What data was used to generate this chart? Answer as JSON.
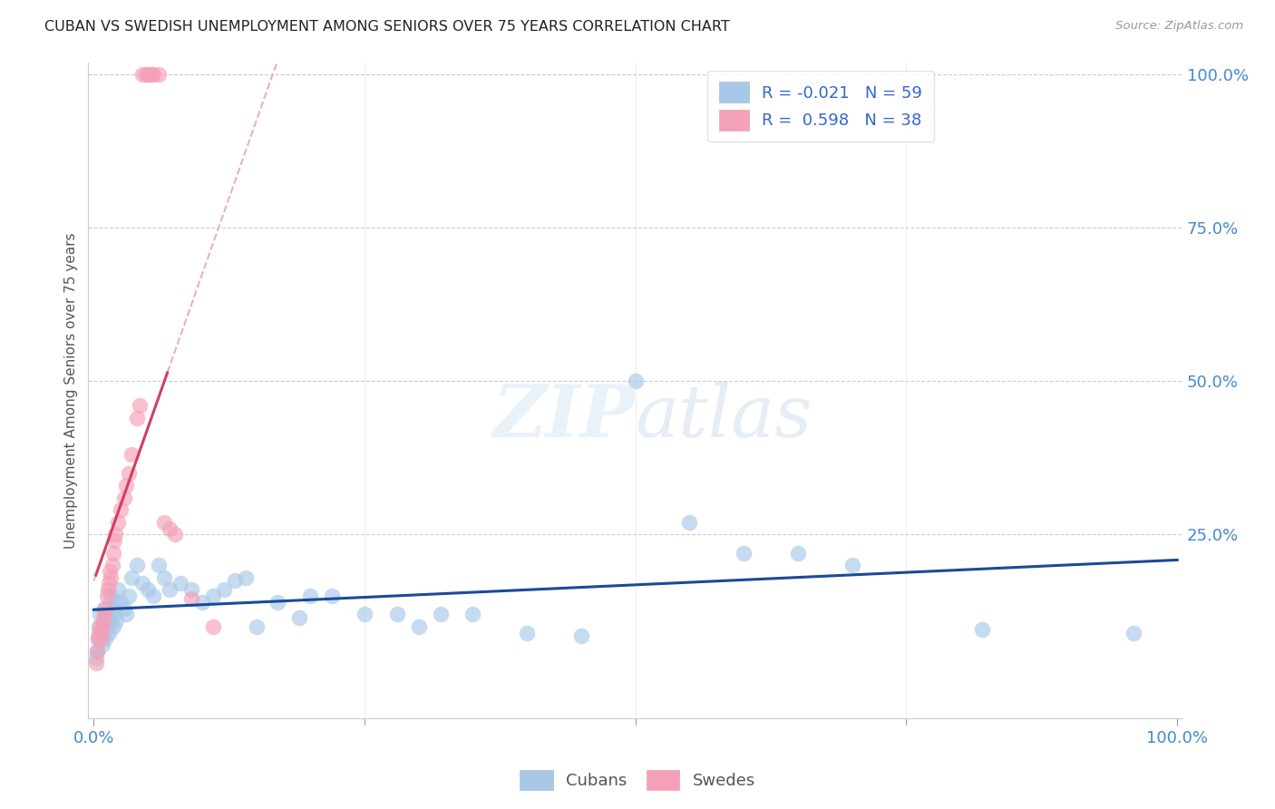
{
  "title": "CUBAN VS SWEDISH UNEMPLOYMENT AMONG SENIORS OVER 75 YEARS CORRELATION CHART",
  "source": "Source: ZipAtlas.com",
  "ylabel_label": "Unemployment Among Seniors over 75 years",
  "legend_cubans": "Cubans",
  "legend_swedes": "Swedes",
  "R_cubans": -0.021,
  "N_cubans": 59,
  "R_swedes": 0.598,
  "N_swedes": 38,
  "cubans_color": "#a8c8e8",
  "swedes_color": "#f4a0b8",
  "cubans_line_color": "#1a4a9a",
  "swedes_line_color": "#d04060",
  "trendline_dashed_color": "#e8b0b8",
  "cubans_x": [
    0.002,
    0.003,
    0.004,
    0.005,
    0.006,
    0.007,
    0.008,
    0.009,
    0.01,
    0.011,
    0.012,
    0.013,
    0.014,
    0.015,
    0.016,
    0.017,
    0.018,
    0.019,
    0.02,
    0.021,
    0.022,
    0.025,
    0.028,
    0.03,
    0.032,
    0.035,
    0.04,
    0.045,
    0.05,
    0.055,
    0.06,
    0.065,
    0.07,
    0.08,
    0.09,
    0.1,
    0.11,
    0.12,
    0.13,
    0.14,
    0.15,
    0.17,
    0.19,
    0.2,
    0.22,
    0.25,
    0.28,
    0.3,
    0.32,
    0.35,
    0.4,
    0.45,
    0.5,
    0.55,
    0.6,
    0.65,
    0.7,
    0.82,
    0.96
  ],
  "cubans_y": [
    0.05,
    0.06,
    0.08,
    0.1,
    0.12,
    0.09,
    0.07,
    0.11,
    0.13,
    0.08,
    0.1,
    0.12,
    0.09,
    0.11,
    0.15,
    0.13,
    0.1,
    0.12,
    0.14,
    0.11,
    0.16,
    0.14,
    0.13,
    0.12,
    0.15,
    0.18,
    0.2,
    0.17,
    0.16,
    0.15,
    0.2,
    0.18,
    0.16,
    0.17,
    0.16,
    0.14,
    0.15,
    0.16,
    0.175,
    0.18,
    0.1,
    0.14,
    0.115,
    0.15,
    0.15,
    0.12,
    0.12,
    0.1,
    0.12,
    0.12,
    0.09,
    0.085,
    0.5,
    0.27,
    0.22,
    0.22,
    0.2,
    0.095,
    0.09
  ],
  "swedes_x": [
    0.002,
    0.003,
    0.004,
    0.005,
    0.006,
    0.007,
    0.008,
    0.009,
    0.01,
    0.011,
    0.012,
    0.013,
    0.014,
    0.015,
    0.016,
    0.017,
    0.018,
    0.019,
    0.02,
    0.022,
    0.025,
    0.028,
    0.03,
    0.032,
    0.035,
    0.04,
    0.042,
    0.045,
    0.048,
    0.05,
    0.053,
    0.055,
    0.06,
    0.065,
    0.07,
    0.075,
    0.09,
    0.11
  ],
  "swedes_y": [
    0.04,
    0.06,
    0.08,
    0.09,
    0.1,
    0.08,
    0.1,
    0.11,
    0.12,
    0.13,
    0.15,
    0.16,
    0.17,
    0.19,
    0.18,
    0.2,
    0.22,
    0.24,
    0.25,
    0.27,
    0.29,
    0.31,
    0.33,
    0.35,
    0.38,
    0.44,
    0.46,
    1.0,
    1.0,
    1.0,
    1.0,
    1.0,
    1.0,
    0.27,
    0.26,
    0.25,
    0.145,
    0.1
  ],
  "watermark_zip": "ZIP",
  "watermark_atlas": "atlas",
  "xlim": [
    0.0,
    1.0
  ],
  "ylim_min": -0.05,
  "ylim_max": 1.02,
  "yticks": [
    0.0,
    0.25,
    0.5,
    0.75,
    1.0
  ],
  "ytick_labels": [
    "",
    "25.0%",
    "50.0%",
    "75.0%",
    "100.0%"
  ],
  "xtick_labels_left": "0.0%",
  "xtick_labels_right": "100.0%"
}
